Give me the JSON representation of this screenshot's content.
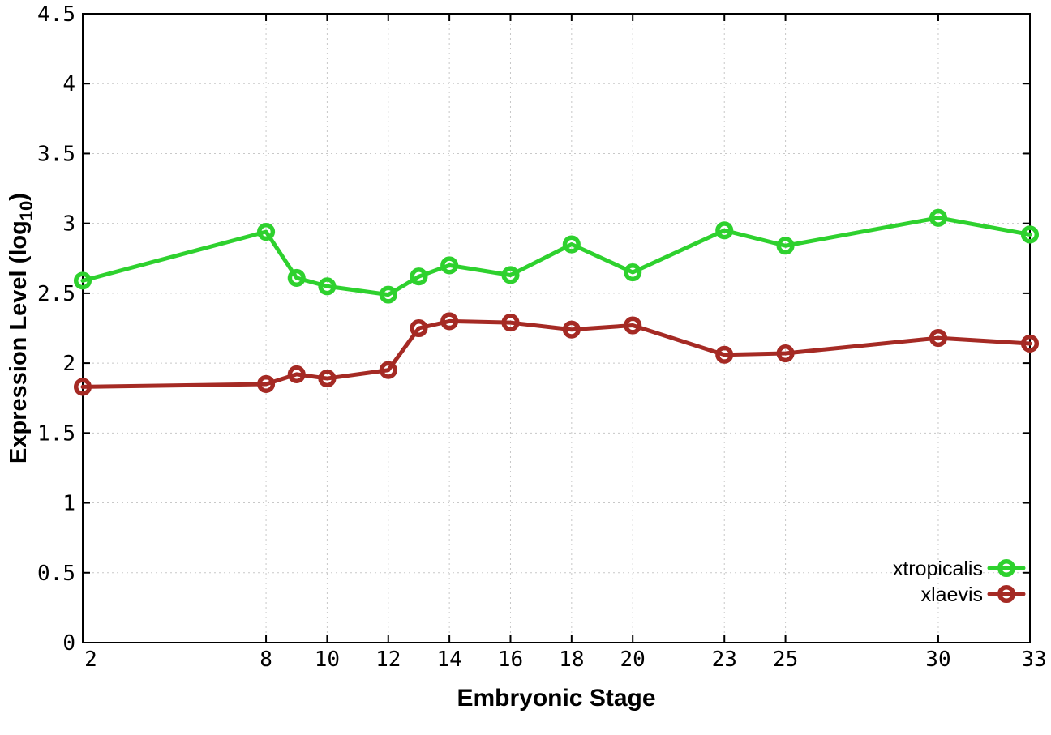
{
  "chart_data": {
    "type": "line",
    "title": "",
    "xlabel": "Embryonic Stage",
    "ylabel": "Expression Level (log10)",
    "ylabel_parts": {
      "prefix": "Expression Level (log",
      "sub": "10",
      "suffix": ")"
    },
    "xlim": [
      2,
      33
    ],
    "ylim": [
      0,
      4.5
    ],
    "grid": true,
    "legend_position": "bottom-right",
    "x": [
      2,
      8,
      9,
      10,
      12,
      13,
      14,
      16,
      18,
      20,
      23,
      25,
      30,
      33
    ],
    "xtick_values": [
      2,
      8,
      10,
      12,
      14,
      16,
      18,
      20,
      23,
      25,
      30,
      33
    ],
    "xtick_labels": [
      "2",
      "8",
      "10",
      "12",
      "14",
      "16",
      "18",
      "20",
      "23",
      "25",
      "30",
      "33"
    ],
    "ytick_values": [
      0,
      0.5,
      1,
      1.5,
      2,
      2.5,
      3,
      3.5,
      4,
      4.5
    ],
    "ytick_labels": [
      "0",
      "0.5",
      "1",
      "1.5",
      "2",
      "2.5",
      "3",
      "3.5",
      "4",
      "4.5"
    ],
    "series": [
      {
        "name": "xtropicalis",
        "color": "#2ed12e",
        "values": [
          2.59,
          2.94,
          2.61,
          2.55,
          2.49,
          2.62,
          2.7,
          2.63,
          2.85,
          2.65,
          2.95,
          2.84,
          3.04,
          2.92
        ]
      },
      {
        "name": "xlaevis",
        "color": "#a52a24",
        "values": [
          1.83,
          1.85,
          1.92,
          1.89,
          1.95,
          2.25,
          2.3,
          2.29,
          2.24,
          2.27,
          2.06,
          2.07,
          2.18,
          2.14
        ]
      }
    ]
  },
  "colors": {
    "background": "#ffffff",
    "border": "#000000",
    "grid": "#c8c8c8",
    "text": "#000000"
  }
}
